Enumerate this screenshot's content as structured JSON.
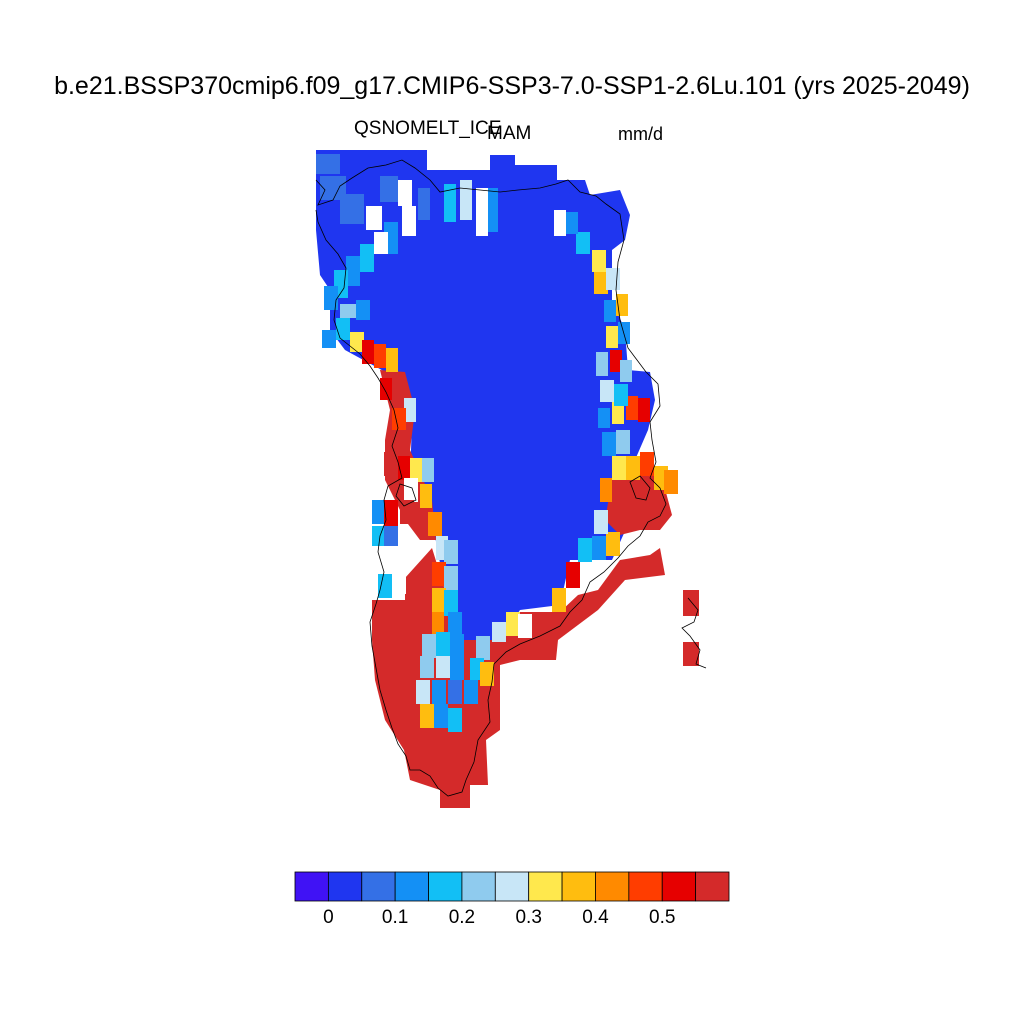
{
  "title": "b.e21.BSSP370cmip6.f09_g17.CMIP6-SSP3-7.0-SSP1-2.6Lu.101 (yrs 2025-2049)",
  "variable": "QSNOMELT_ICE",
  "season": "MAM",
  "units": "mm/d",
  "colorbar": {
    "colors": [
      "#4012f5",
      "#1f36f0",
      "#3470e6",
      "#1490f5",
      "#12bff5",
      "#8fcbee",
      "#c8e6f7",
      "#ffe84d",
      "#ffbd0f",
      "#ff8a00",
      "#ff3d00",
      "#e60000",
      "#d42a2a"
    ],
    "tick_labels": [
      "0",
      "0.1",
      "0.2",
      "0.3",
      "0.4",
      "0.5"
    ]
  }
}
